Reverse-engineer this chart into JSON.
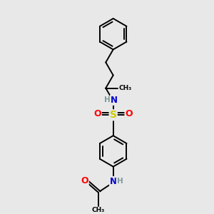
{
  "bg_color": "#e8e8e8",
  "bond_color": "#000000",
  "atom_colors": {
    "N": "#0000cd",
    "O": "#ff0000",
    "S": "#cccc00",
    "H": "#7a9a9a",
    "C": "#000000"
  },
  "figsize": [
    3.0,
    3.0
  ],
  "dpi": 100,
  "lw": 1.4,
  "sep": 0.08
}
